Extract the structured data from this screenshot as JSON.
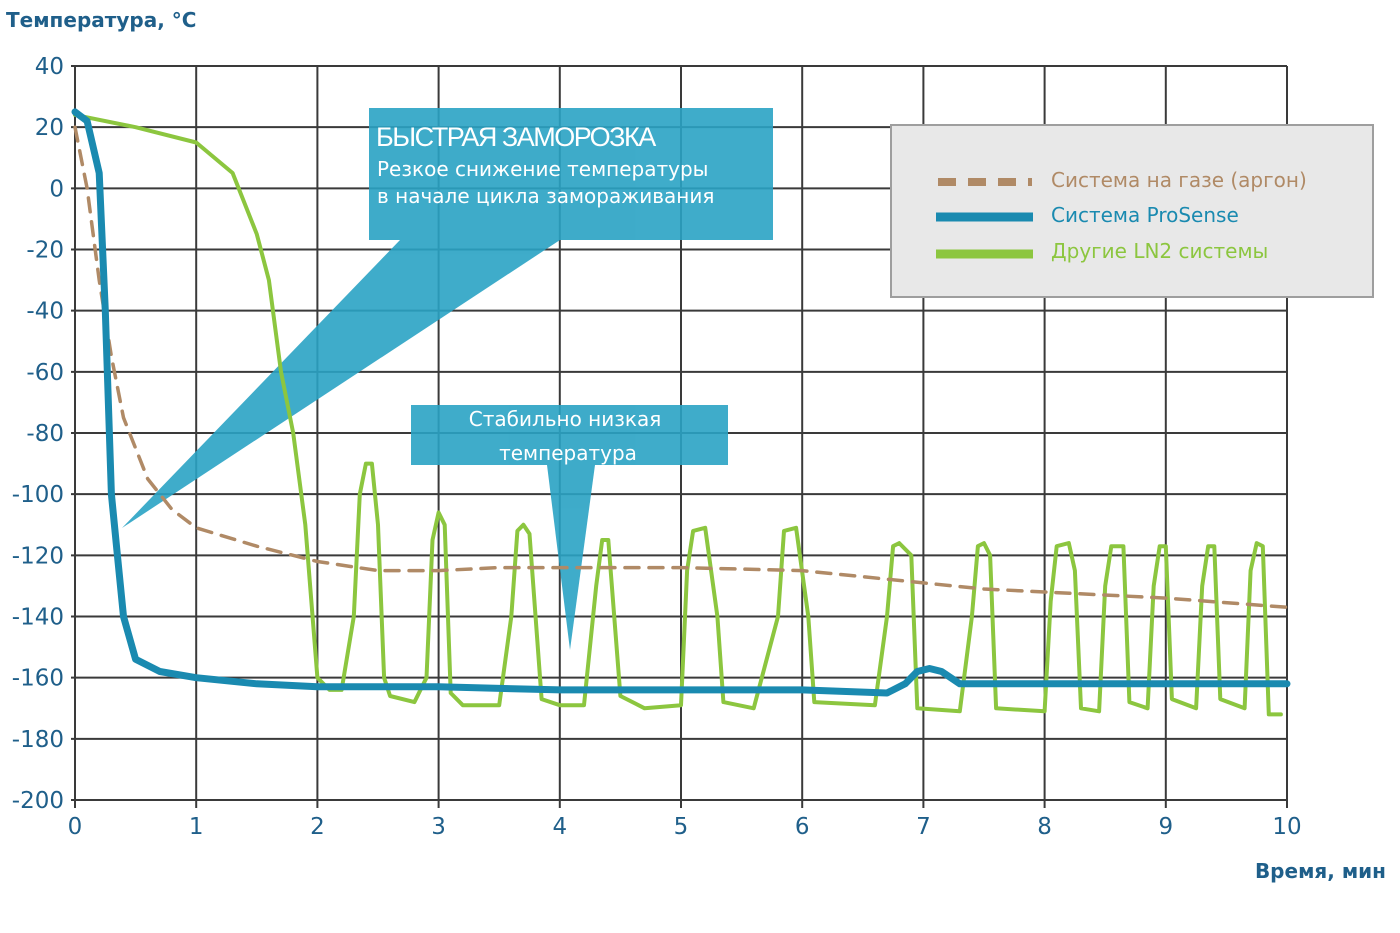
{
  "chart_data": {
    "type": "line",
    "ylabel": "Температура, °C",
    "xlabel": "Время, мин",
    "xlim": [
      0,
      10
    ],
    "ylim": [
      -200,
      40
    ],
    "x_ticks": [
      "0",
      "1",
      "2",
      "3",
      "4",
      "5",
      "6",
      "7",
      "8",
      "9",
      "10"
    ],
    "y_ticks": [
      "40",
      "20",
      "0",
      "-20",
      "-40",
      "-60",
      "-80",
      "-100",
      "-120",
      "-140",
      "-160",
      "-180",
      "-200"
    ],
    "grid": true,
    "legend_position": "top-right",
    "series": [
      {
        "name": "Система на газе (аргон)",
        "color": "#b08a66",
        "style": "dashed",
        "points": [
          [
            0,
            20
          ],
          [
            0.1,
            0
          ],
          [
            0.2,
            -30
          ],
          [
            0.3,
            -55
          ],
          [
            0.4,
            -75
          ],
          [
            0.5,
            -85
          ],
          [
            0.6,
            -95
          ],
          [
            0.8,
            -105
          ],
          [
            1.0,
            -111
          ],
          [
            1.5,
            -117
          ],
          [
            2.0,
            -122
          ],
          [
            2.5,
            -125
          ],
          [
            3.0,
            -125
          ],
          [
            3.5,
            -124
          ],
          [
            4.0,
            -124
          ],
          [
            5.0,
            -124
          ],
          [
            6.0,
            -125
          ],
          [
            6.5,
            -127
          ],
          [
            7.0,
            -129
          ],
          [
            7.5,
            -131
          ],
          [
            8.0,
            -132
          ],
          [
            9.0,
            -134
          ],
          [
            10.0,
            -137
          ]
        ]
      },
      {
        "name": "Система ProSense",
        "color": "#1a8ab0",
        "style": "solid",
        "points": [
          [
            0,
            25
          ],
          [
            0.1,
            22
          ],
          [
            0.2,
            5
          ],
          [
            0.25,
            -40
          ],
          [
            0.3,
            -100
          ],
          [
            0.35,
            -120
          ],
          [
            0.4,
            -140
          ],
          [
            0.5,
            -154
          ],
          [
            0.7,
            -158
          ],
          [
            1.0,
            -160
          ],
          [
            1.5,
            -162
          ],
          [
            2.0,
            -163
          ],
          [
            3.0,
            -163
          ],
          [
            4.0,
            -164
          ],
          [
            5.0,
            -164
          ],
          [
            6.0,
            -164
          ],
          [
            6.7,
            -165
          ],
          [
            6.85,
            -162
          ],
          [
            6.95,
            -158
          ],
          [
            7.05,
            -157
          ],
          [
            7.15,
            -158
          ],
          [
            7.3,
            -162
          ],
          [
            8.0,
            -162
          ],
          [
            9.0,
            -162
          ],
          [
            10.0,
            -162
          ]
        ]
      },
      {
        "name": "Другие LN2 системы",
        "color": "#8cc63f",
        "style": "solid",
        "points": [
          [
            0,
            24
          ],
          [
            0.5,
            20
          ],
          [
            1.0,
            15
          ],
          [
            1.3,
            5
          ],
          [
            1.5,
            -15
          ],
          [
            1.6,
            -30
          ],
          [
            1.7,
            -60
          ],
          [
            1.8,
            -80
          ],
          [
            1.9,
            -110
          ],
          [
            2.0,
            -160
          ],
          [
            2.1,
            -164
          ],
          [
            2.2,
            -164
          ],
          [
            2.3,
            -140
          ],
          [
            2.35,
            -100
          ],
          [
            2.4,
            -90
          ],
          [
            2.45,
            -90
          ],
          [
            2.5,
            -110
          ],
          [
            2.55,
            -160
          ],
          [
            2.6,
            -166
          ],
          [
            2.8,
            -168
          ],
          [
            2.9,
            -160
          ],
          [
            2.95,
            -115
          ],
          [
            3.0,
            -106
          ],
          [
            3.05,
            -110
          ],
          [
            3.1,
            -165
          ],
          [
            3.2,
            -169
          ],
          [
            3.5,
            -169
          ],
          [
            3.6,
            -140
          ],
          [
            3.65,
            -112
          ],
          [
            3.7,
            -110
          ],
          [
            3.75,
            -113
          ],
          [
            3.85,
            -167
          ],
          [
            4.0,
            -169
          ],
          [
            4.2,
            -169
          ],
          [
            4.3,
            -130
          ],
          [
            4.35,
            -115
          ],
          [
            4.4,
            -115
          ],
          [
            4.5,
            -166
          ],
          [
            4.7,
            -170
          ],
          [
            5.0,
            -169
          ],
          [
            5.05,
            -125
          ],
          [
            5.1,
            -112
          ],
          [
            5.2,
            -111
          ],
          [
            5.3,
            -140
          ],
          [
            5.35,
            -168
          ],
          [
            5.6,
            -170
          ],
          [
            5.8,
            -140
          ],
          [
            5.85,
            -112
          ],
          [
            5.95,
            -111
          ],
          [
            6.05,
            -140
          ],
          [
            6.1,
            -168
          ],
          [
            6.6,
            -169
          ],
          [
            6.7,
            -140
          ],
          [
            6.75,
            -117
          ],
          [
            6.8,
            -116
          ],
          [
            6.9,
            -120
          ],
          [
            6.95,
            -170
          ],
          [
            7.3,
            -171
          ],
          [
            7.4,
            -140
          ],
          [
            7.45,
            -117
          ],
          [
            7.5,
            -116
          ],
          [
            7.55,
            -120
          ],
          [
            7.6,
            -170
          ],
          [
            8.0,
            -171
          ],
          [
            8.05,
            -135
          ],
          [
            8.1,
            -117
          ],
          [
            8.2,
            -116
          ],
          [
            8.25,
            -125
          ],
          [
            8.3,
            -170
          ],
          [
            8.45,
            -171
          ],
          [
            8.5,
            -130
          ],
          [
            8.55,
            -117
          ],
          [
            8.65,
            -117
          ],
          [
            8.7,
            -168
          ],
          [
            8.85,
            -170
          ],
          [
            8.9,
            -130
          ],
          [
            8.95,
            -117
          ],
          [
            9.0,
            -117
          ],
          [
            9.05,
            -167
          ],
          [
            9.25,
            -170
          ],
          [
            9.3,
            -130
          ],
          [
            9.35,
            -117
          ],
          [
            9.4,
            -117
          ],
          [
            9.45,
            -167
          ],
          [
            9.65,
            -170
          ],
          [
            9.7,
            -125
          ],
          [
            9.75,
            -116
          ],
          [
            9.8,
            -117
          ],
          [
            9.85,
            -172
          ],
          [
            9.95,
            -172
          ]
        ]
      }
    ],
    "annotations": [
      {
        "title": "БЫСТРАЯ ЗАМОРОЗКА",
        "lines": [
          "Резкое снижение температуры",
          "в начале цикла замораживания"
        ],
        "color": "#2aa3c4"
      },
      {
        "lines": [
          "Стабильно низкая",
          "температура"
        ],
        "color": "#2aa3c4"
      }
    ]
  }
}
